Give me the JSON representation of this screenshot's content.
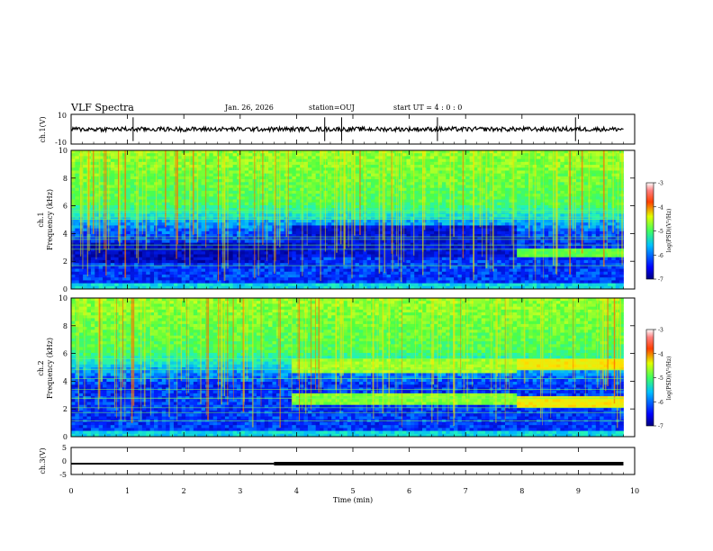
{
  "header": {
    "title": "VLF Spectra",
    "date": "Jan. 26, 2026",
    "station": "station=OUJ",
    "start": "start UT =  4 : 0 : 0"
  },
  "colors": {
    "trace": "#000000",
    "spectrogram_palette": [
      "#00008f",
      "#0020ff",
      "#00b0ff",
      "#20f0c0",
      "#50ff40",
      "#c8ff20",
      "#ffe000",
      "#ff6000",
      "#c00000"
    ]
  },
  "chart_data": [
    {
      "type": "line",
      "name": "ch1-waveform",
      "ylabel": "ch.1(V)",
      "ylim": [
        -10,
        10
      ],
      "yticks": [
        "10",
        "-10"
      ],
      "mean": 0,
      "spikes_min": [
        1.1,
        4.5,
        4.8,
        6.5,
        8.95
      ]
    },
    {
      "type": "heatmap",
      "name": "ch1-spectrogram",
      "ylabel": "ch.1\nFrequency (kHz)",
      "ylim": [
        0,
        10
      ],
      "xlim": [
        0,
        10
      ],
      "data_end_min": 9.8,
      "yticks": [
        "0",
        "2",
        "4",
        "6",
        "8",
        "10"
      ],
      "colorbar": {
        "label": "log(PSD)(V^2/Hz)",
        "range": [
          -7,
          -3
        ],
        "ticks": [
          "-3",
          "-4",
          "-5",
          "-6",
          "-7"
        ]
      },
      "bands_khz": [
        {
          "t_start": 0,
          "t_end": 3.9,
          "f_low": 1.8,
          "f_high": 3.3,
          "level": 0.05
        },
        {
          "t_start": 3.9,
          "t_end": 7.9,
          "f_low": 2.3,
          "f_high": 4.6,
          "level": 0.08
        },
        {
          "t_start": 7.9,
          "t_end": 9.8,
          "f_low": 2.2,
          "f_high": 2.9,
          "level": 0.5
        }
      ]
    },
    {
      "type": "heatmap",
      "name": "ch2-spectrogram",
      "ylabel": "ch.2\nFrequency (kHz)",
      "ylim": [
        0,
        10
      ],
      "xlim": [
        0,
        10
      ],
      "data_end_min": 9.8,
      "yticks": [
        "0",
        "2",
        "4",
        "6",
        "8",
        "10"
      ],
      "colorbar": {
        "label": "log(PSD)(V^2/Hz)",
        "range": [
          -7,
          -3
        ],
        "ticks": [
          "-3",
          "-4",
          "-5",
          "-6",
          "-7"
        ]
      },
      "bands_khz": [
        {
          "t_start": 3.9,
          "t_end": 7.9,
          "f_low": 4.5,
          "f_high": 5.6,
          "level": 0.58
        },
        {
          "t_start": 3.9,
          "t_end": 7.9,
          "f_low": 2.2,
          "f_high": 3.2,
          "level": 0.55
        },
        {
          "t_start": 7.9,
          "t_end": 9.8,
          "f_low": 4.8,
          "f_high": 5.6,
          "level": 0.72
        },
        {
          "t_start": 7.9,
          "t_end": 9.8,
          "f_low": 2.1,
          "f_high": 2.9,
          "level": 0.72
        }
      ]
    },
    {
      "type": "line",
      "name": "ch3-level",
      "ylabel": "ch.3(V)",
      "ylim": [
        -5,
        5
      ],
      "yticks": [
        "5",
        "0",
        "-5"
      ],
      "segments": [
        {
          "t_start": 0,
          "t_end": 3.6,
          "value": -1
        },
        {
          "t_start": 3.6,
          "t_end": 9.8,
          "value": -1
        }
      ],
      "thick_after_min": 3.6
    }
  ],
  "x_axis": {
    "xlabel": "Time (min)",
    "xlim": [
      0,
      10
    ],
    "ticks": [
      "0",
      "1",
      "2",
      "3",
      "4",
      "5",
      "6",
      "7",
      "8",
      "9",
      "10"
    ]
  }
}
